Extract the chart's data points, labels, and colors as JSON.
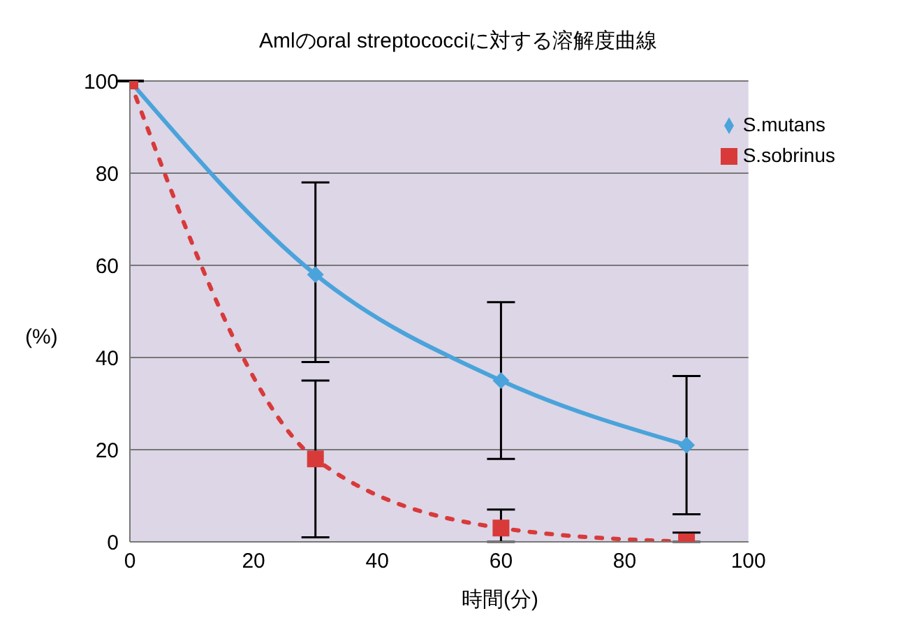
{
  "chart_data": {
    "type": "line",
    "title": "Amlのoral streptococciに対する溶解度曲線",
    "xlabel": "時間(分)",
    "ylabel": "(%)",
    "x": [
      0,
      30,
      60,
      90
    ],
    "series": [
      {
        "name": "S.mutans",
        "color": "#4aa3db",
        "values": [
          100,
          58,
          35,
          21
        ],
        "errors": [
          null,
          [
            39,
            78
          ],
          [
            18,
            52
          ],
          [
            6,
            36
          ]
        ],
        "marker": "diamond",
        "line_style": "solid"
      },
      {
        "name": "S.sobrinus",
        "color": "#d83a3a",
        "values": [
          100,
          18,
          3,
          0
        ],
        "errors": [
          null,
          [
            1,
            35
          ],
          [
            0,
            7
          ],
          [
            0,
            2
          ]
        ],
        "marker": "square",
        "line_style": "dotted"
      }
    ],
    "xlim": [
      0,
      100
    ],
    "xticks": [
      0,
      20,
      40,
      60,
      80,
      100
    ],
    "ylim": [
      0,
      100
    ],
    "yticks": [
      0,
      20,
      40,
      60,
      80,
      100
    ],
    "grid": "y",
    "legend": "top right"
  }
}
